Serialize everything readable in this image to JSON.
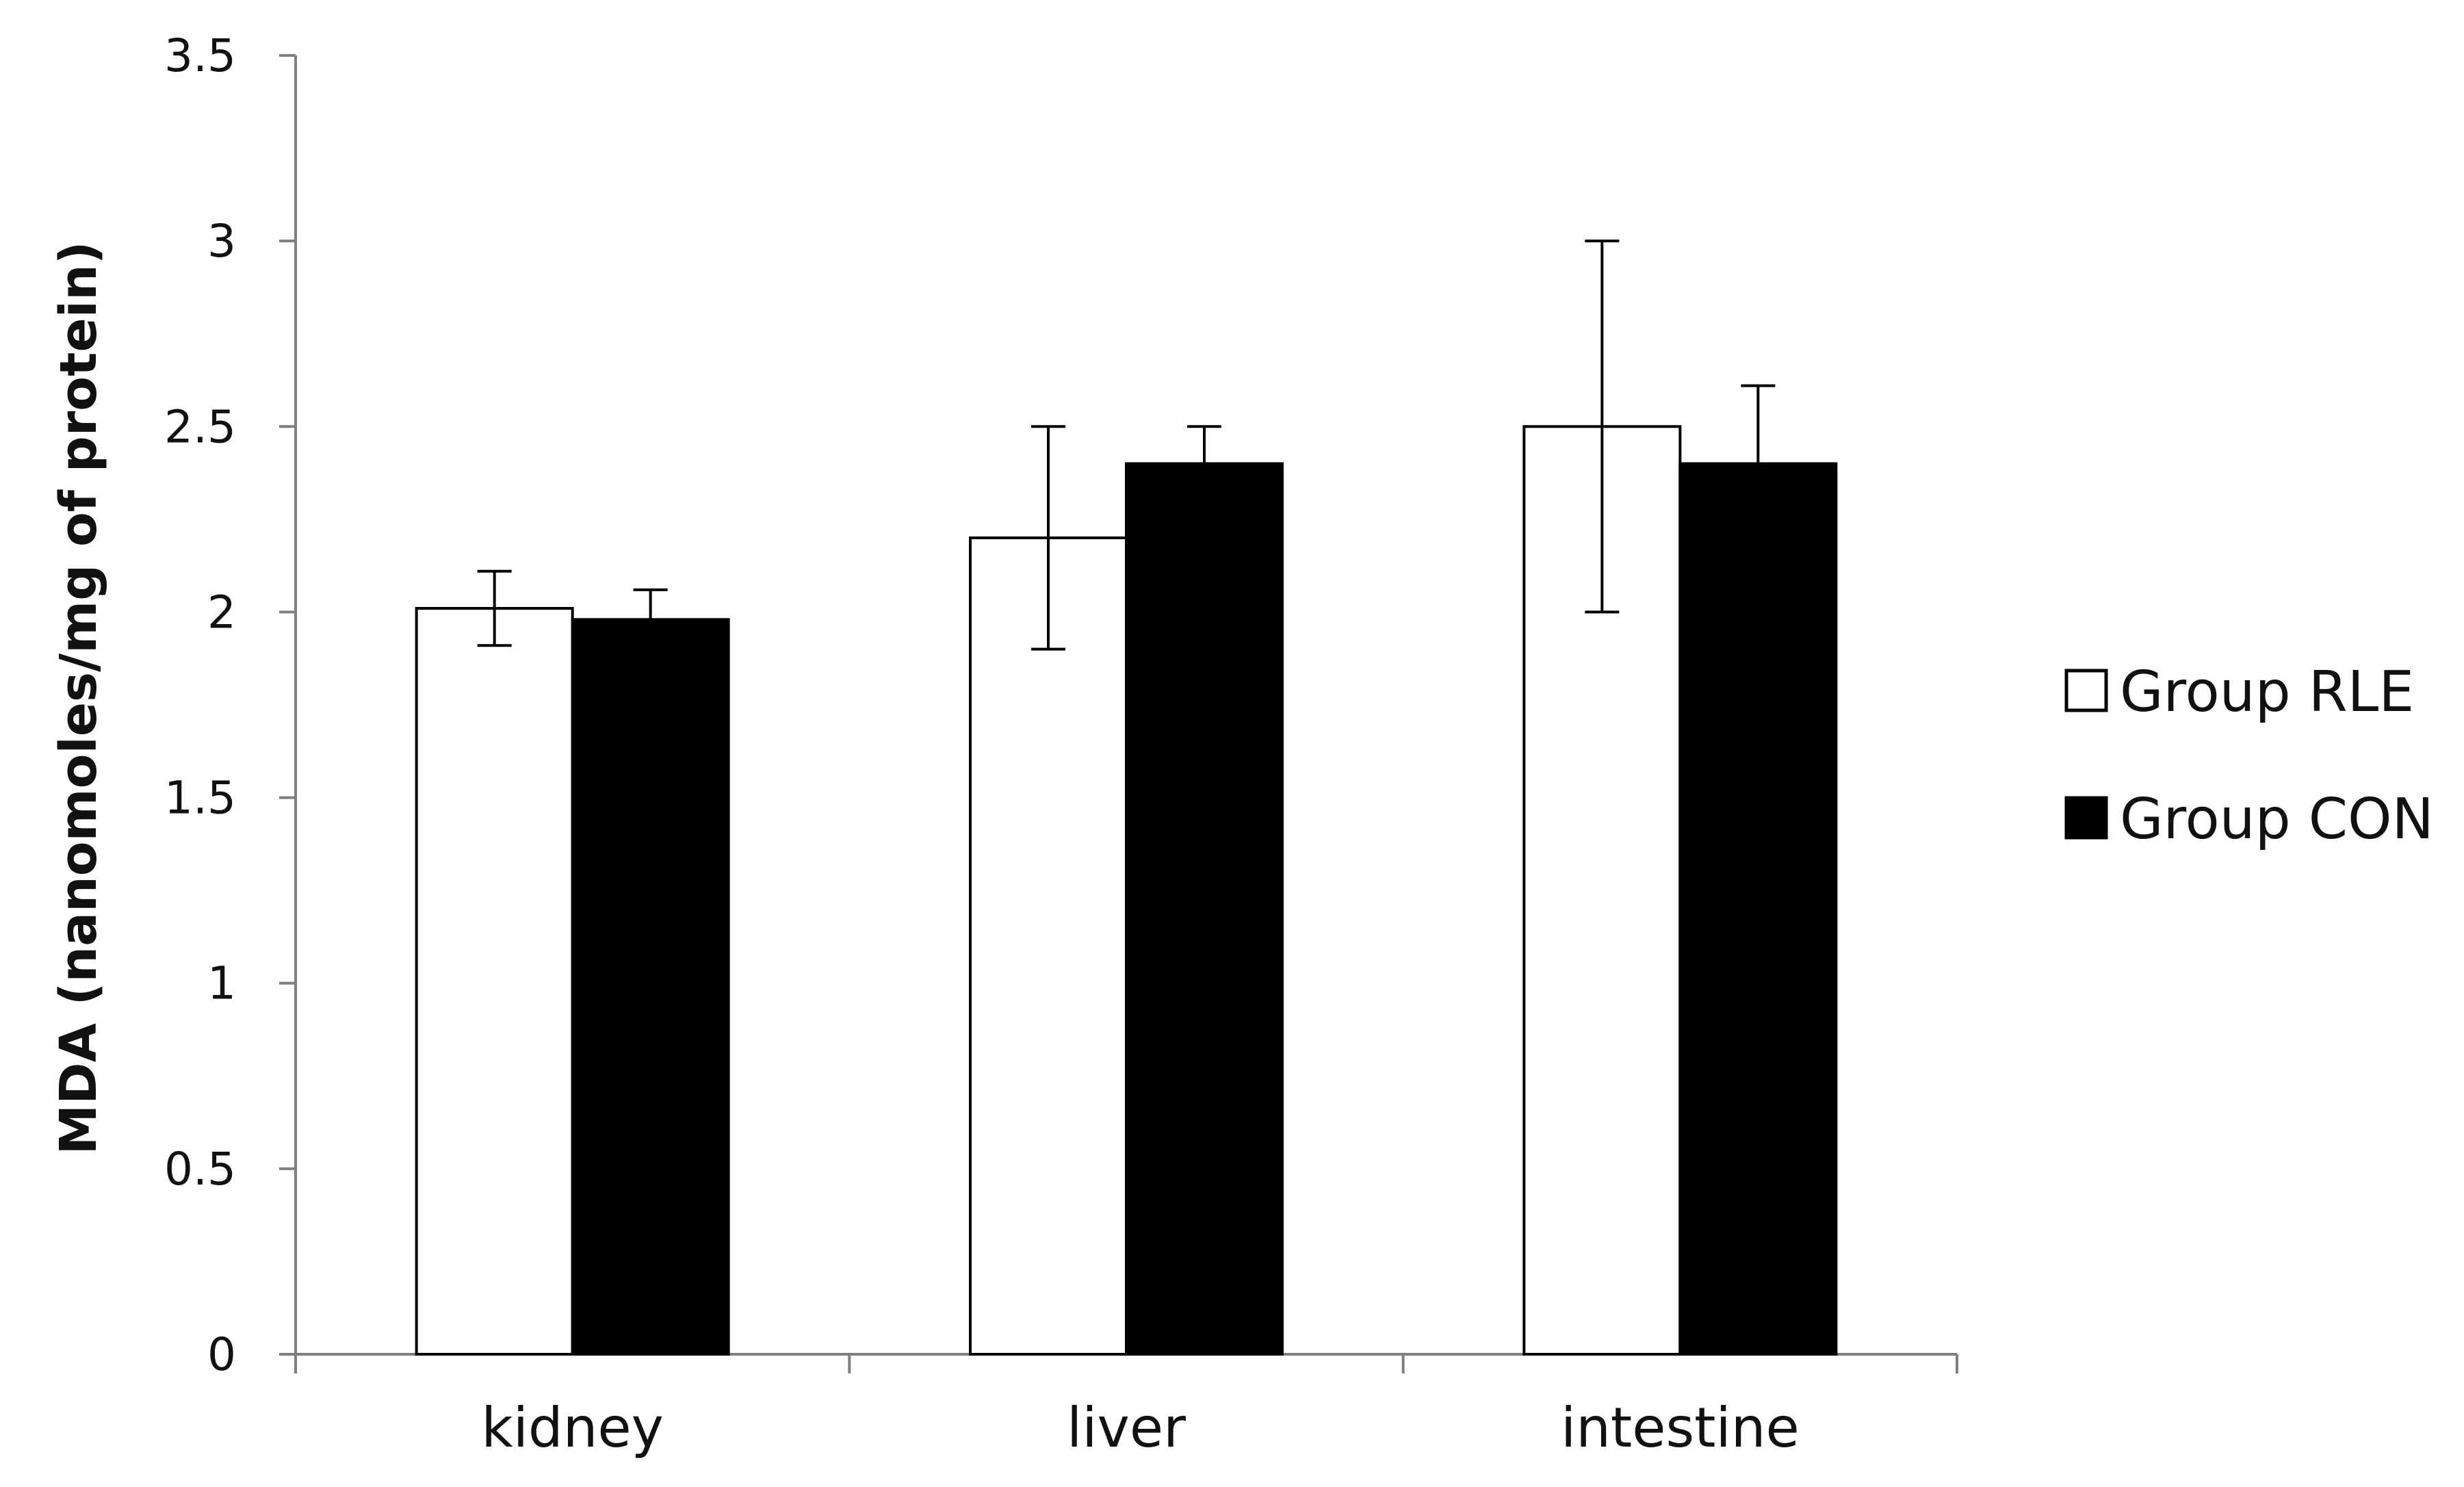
{
  "chart_data": {
    "type": "bar",
    "title": "",
    "xlabel": "",
    "ylabel": "MDA (nanomoles/mg of protein)",
    "ylim": [
      0,
      3.5
    ],
    "yticks": [
      "0",
      "0.5",
      "1",
      "1.5",
      "2",
      "2.5",
      "3",
      "3.5"
    ],
    "categories": [
      "kidney",
      "liver",
      "intestine"
    ],
    "legend_position": "right",
    "series": [
      {
        "name": "Group RLE",
        "fill": "#ffffff",
        "values": [
          2.01,
          2.2,
          2.5
        ],
        "errors": [
          0.1,
          0.3,
          0.5
        ]
      },
      {
        "name": "Group CON",
        "fill": "#000000",
        "values": [
          1.98,
          2.4,
          2.4
        ],
        "errors": [
          0.08,
          0.1,
          0.21
        ]
      }
    ]
  }
}
